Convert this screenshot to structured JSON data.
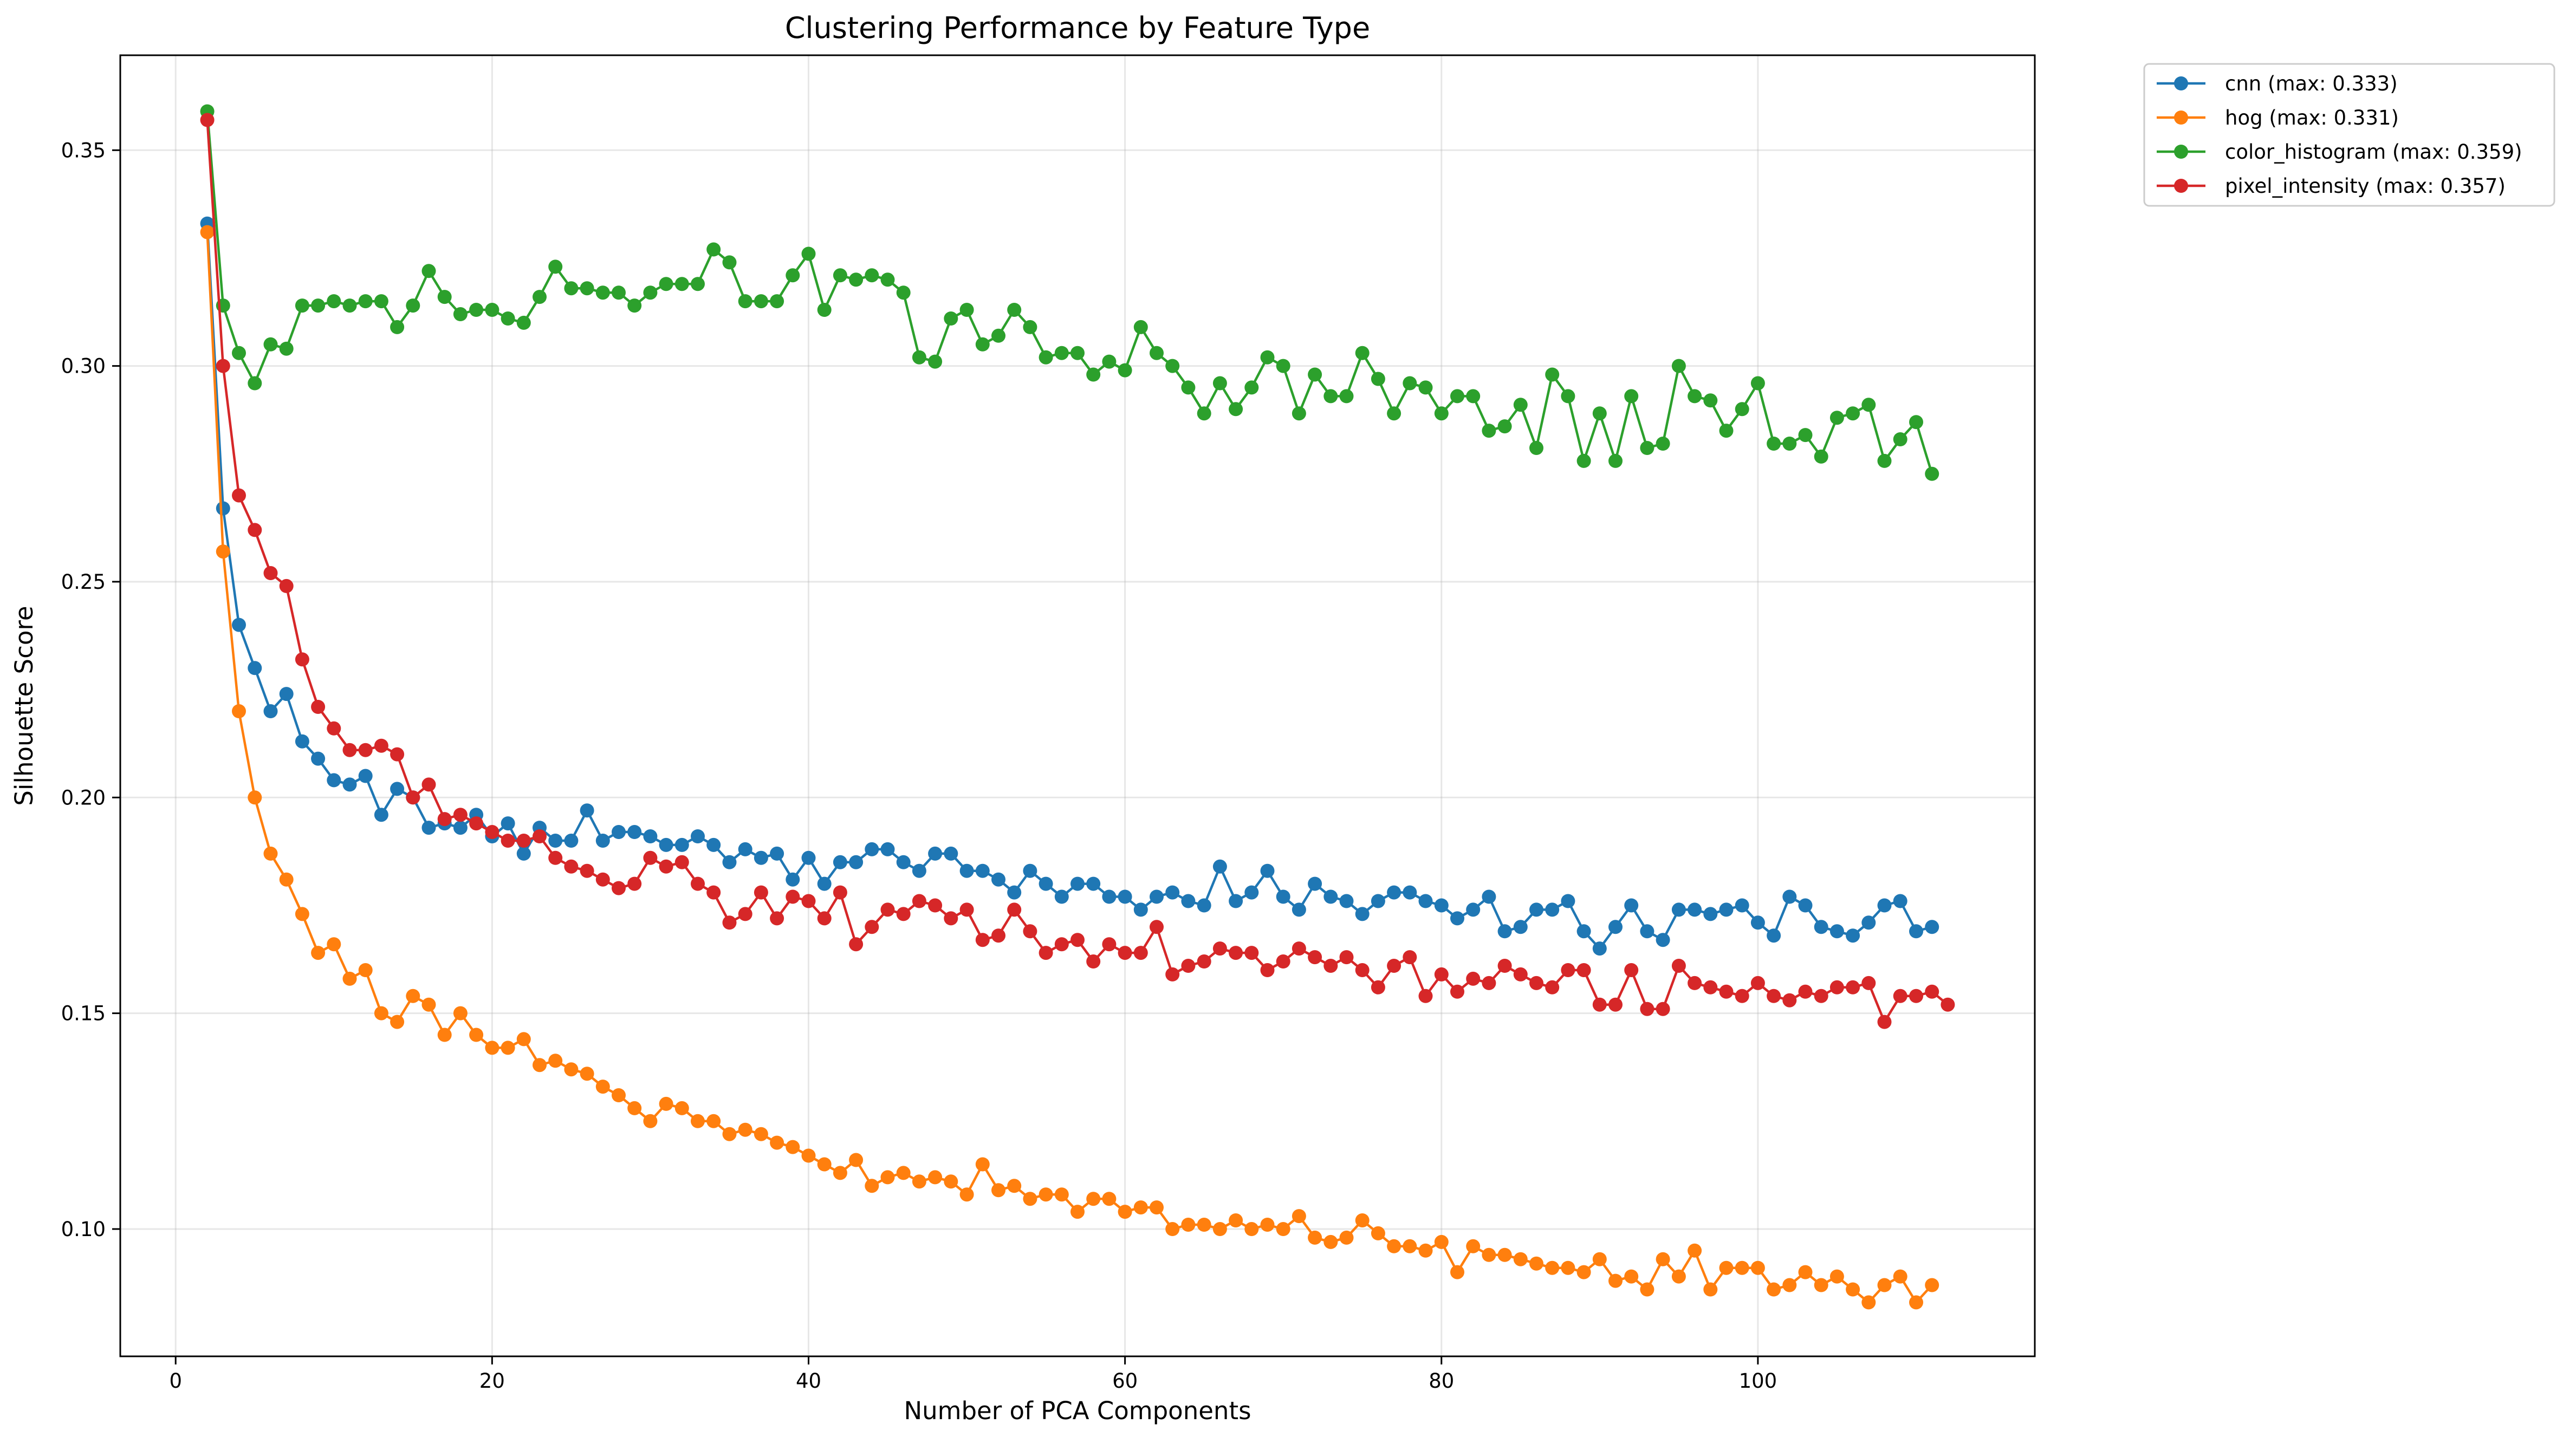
{
  "chart_data": {
    "type": "line",
    "title": "Clustering Performance by Feature Type",
    "xlabel": "Number of PCA Components",
    "ylabel": "Silhouette Score",
    "xlim": [
      -3.5,
      117.5
    ],
    "ylim": [
      0.0705,
      0.372
    ],
    "xticks": [
      0,
      20,
      40,
      60,
      80,
      100
    ],
    "yticks": [
      0.1,
      0.15,
      0.2,
      0.25,
      0.3,
      0.35
    ],
    "xtick_labels": [
      "0",
      "20",
      "40",
      "60",
      "80",
      "100"
    ],
    "ytick_labels": [
      "0.10",
      "0.15",
      "0.20",
      "0.25",
      "0.30",
      "0.35"
    ],
    "grid": true,
    "legend_position": "outside upper-right",
    "x_start": 2,
    "series": [
      {
        "name": "cnn (max: 0.333)",
        "color": "#1f77b4",
        "values": [
          0.333,
          0.267,
          0.24,
          0.23,
          0.22,
          0.224,
          0.213,
          0.209,
          0.204,
          0.203,
          0.205,
          0.196,
          0.202,
          0.2,
          0.193,
          0.194,
          0.193,
          0.196,
          0.191,
          0.194,
          0.187,
          0.193,
          0.19,
          0.19,
          0.197,
          0.19,
          0.192,
          0.192,
          0.191,
          0.189,
          0.189,
          0.191,
          0.189,
          0.185,
          0.188,
          0.186,
          0.187,
          0.181,
          0.186,
          0.18,
          0.185,
          0.185,
          0.188,
          0.188,
          0.185,
          0.183,
          0.187,
          0.187,
          0.183,
          0.183,
          0.181,
          0.178,
          0.183,
          0.18,
          0.177,
          0.18,
          0.18,
          0.177,
          0.177,
          0.174,
          0.177,
          0.178,
          0.176,
          0.175,
          0.184,
          0.176,
          0.178,
          0.183,
          0.177,
          0.174,
          0.18,
          0.177,
          0.176,
          0.173,
          0.176,
          0.178,
          0.178,
          0.176,
          0.175,
          0.172,
          0.174,
          0.177,
          0.169,
          0.17,
          0.174,
          0.174,
          0.176,
          0.169,
          0.165,
          0.17,
          0.175,
          0.169,
          0.167,
          0.174,
          0.174,
          0.173,
          0.174,
          0.175,
          0.171,
          0.168,
          0.177,
          0.175,
          0.17,
          0.169,
          0.168,
          0.171,
          0.175,
          0.176,
          0.169,
          0.17
        ]
      },
      {
        "name": "hog (max: 0.331)",
        "color": "#ff7f0e",
        "values": [
          0.331,
          0.257,
          0.22,
          0.2,
          0.187,
          0.181,
          0.173,
          0.164,
          0.166,
          0.158,
          0.16,
          0.15,
          0.148,
          0.154,
          0.152,
          0.145,
          0.15,
          0.145,
          0.142,
          0.142,
          0.144,
          0.138,
          0.139,
          0.137,
          0.136,
          0.133,
          0.131,
          0.128,
          0.125,
          0.129,
          0.128,
          0.125,
          0.125,
          0.122,
          0.123,
          0.122,
          0.12,
          0.119,
          0.117,
          0.115,
          0.113,
          0.116,
          0.11,
          0.112,
          0.113,
          0.111,
          0.112,
          0.111,
          0.108,
          0.115,
          0.109,
          0.11,
          0.107,
          0.108,
          0.108,
          0.104,
          0.107,
          0.107,
          0.104,
          0.105,
          0.105,
          0.1,
          0.101,
          0.101,
          0.1,
          0.102,
          0.1,
          0.101,
          0.1,
          0.103,
          0.098,
          0.097,
          0.098,
          0.102,
          0.099,
          0.096,
          0.096,
          0.095,
          0.097,
          0.09,
          0.096,
          0.094,
          0.094,
          0.093,
          0.092,
          0.091,
          0.091,
          0.09,
          0.093,
          0.088,
          0.089,
          0.086,
          0.093,
          0.089,
          0.095,
          0.086,
          0.091,
          0.091,
          0.091,
          0.086,
          0.087,
          0.09,
          0.087,
          0.089,
          0.086,
          0.083,
          0.087,
          0.089,
          0.083,
          0.087
        ]
      },
      {
        "name": "color_histogram (max: 0.359)",
        "color": "#2ca02c",
        "values": [
          0.359,
          0.314,
          0.303,
          0.296,
          0.305,
          0.304,
          0.314,
          0.314,
          0.315,
          0.314,
          0.315,
          0.315,
          0.309,
          0.314,
          0.322,
          0.316,
          0.312,
          0.313,
          0.313,
          0.311,
          0.31,
          0.316,
          0.323,
          0.318,
          0.318,
          0.317,
          0.317,
          0.314,
          0.317,
          0.319,
          0.319,
          0.319,
          0.327,
          0.324,
          0.315,
          0.315,
          0.315,
          0.321,
          0.326,
          0.313,
          0.321,
          0.32,
          0.321,
          0.32,
          0.317,
          0.302,
          0.301,
          0.311,
          0.313,
          0.305,
          0.307,
          0.313,
          0.309,
          0.302,
          0.303,
          0.303,
          0.298,
          0.301,
          0.299,
          0.309,
          0.303,
          0.3,
          0.295,
          0.289,
          0.296,
          0.29,
          0.295,
          0.302,
          0.3,
          0.289,
          0.298,
          0.293,
          0.293,
          0.303,
          0.297,
          0.289,
          0.296,
          0.295,
          0.289,
          0.293,
          0.293,
          0.285,
          0.286,
          0.291,
          0.281,
          0.298,
          0.293,
          0.278,
          0.289,
          0.278,
          0.293,
          0.281,
          0.282,
          0.3,
          0.293,
          0.292,
          0.285,
          0.29,
          0.296,
          0.282,
          0.282,
          0.284,
          0.279,
          0.288,
          0.289,
          0.291,
          0.278,
          0.283,
          0.287,
          0.275
        ]
      },
      {
        "name": "pixel_intensity (max: 0.357)",
        "color": "#d62728",
        "values": [
          0.357,
          0.3,
          0.27,
          0.262,
          0.252,
          0.249,
          0.232,
          0.221,
          0.216,
          0.211,
          0.211,
          0.212,
          0.21,
          0.2,
          0.203,
          0.195,
          0.196,
          0.194,
          0.192,
          0.19,
          0.19,
          0.191,
          0.186,
          0.184,
          0.183,
          0.181,
          0.179,
          0.18,
          0.186,
          0.184,
          0.185,
          0.18,
          0.178,
          0.171,
          0.173,
          0.178,
          0.172,
          0.177,
          0.176,
          0.172,
          0.178,
          0.166,
          0.17,
          0.174,
          0.173,
          0.176,
          0.175,
          0.172,
          0.174,
          0.167,
          0.168,
          0.174,
          0.169,
          0.164,
          0.166,
          0.167,
          0.162,
          0.166,
          0.164,
          0.164,
          0.17,
          0.159,
          0.161,
          0.162,
          0.165,
          0.164,
          0.164,
          0.16,
          0.162,
          0.165,
          0.163,
          0.161,
          0.163,
          0.16,
          0.156,
          0.161,
          0.163,
          0.154,
          0.159,
          0.155,
          0.158,
          0.157,
          0.161,
          0.159,
          0.157,
          0.156,
          0.16,
          0.16,
          0.152,
          0.152,
          0.16,
          0.151,
          0.151,
          0.161,
          0.157,
          0.156,
          0.155,
          0.154,
          0.157,
          0.154,
          0.153,
          0.155,
          0.154,
          0.156,
          0.156,
          0.157,
          0.148,
          0.154,
          0.154,
          0.155,
          0.152
        ]
      }
    ]
  }
}
